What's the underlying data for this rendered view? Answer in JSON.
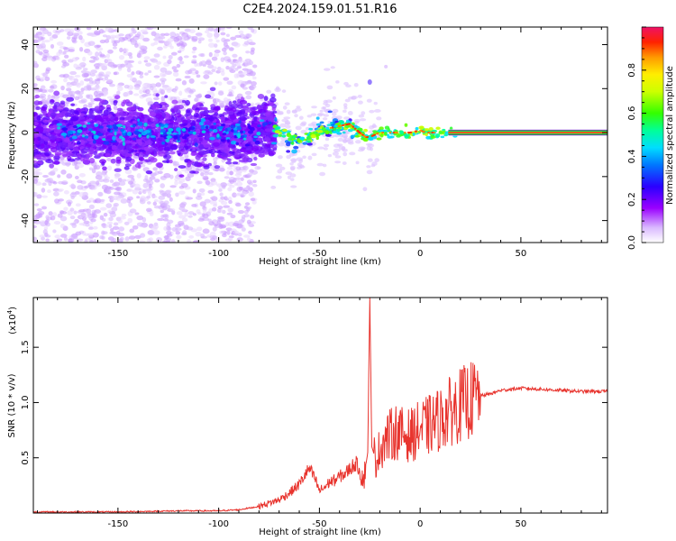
{
  "figure": {
    "title": "C2E4.2024.159.01.51.R16"
  },
  "chart_data": [
    {
      "type": "heatmap",
      "xlabel": "Height of straight line (km)",
      "ylabel": "Frequency (Hz)",
      "xlim": [
        -192,
        93
      ],
      "ylim": [
        -50,
        48
      ],
      "xticks": [
        -150,
        -100,
        -50,
        0,
        50
      ],
      "yticks": [
        -40,
        -20,
        0,
        20,
        40
      ],
      "xtick_labels": [
        "-150",
        "-100",
        "-50",
        "0",
        "50"
      ],
      "ytick_labels": [
        "-40",
        "-20",
        "0",
        "20",
        "40"
      ],
      "colorbar": {
        "label": "Normalized spectral amplitude",
        "range": [
          0,
          1
        ],
        "ticks": [
          0.0,
          0.2,
          0.4,
          0.6,
          0.8
        ],
        "tick_labels": [
          "0.0",
          "0.2",
          "0.4",
          "0.6",
          "0.8"
        ]
      },
      "ridge_center": [
        [
          -80,
          4
        ],
        [
          -70,
          1
        ],
        [
          -65,
          -3
        ],
        [
          -60,
          -4
        ],
        [
          -55,
          -2
        ],
        [
          -50,
          0
        ],
        [
          -45,
          2
        ],
        [
          -40,
          3
        ],
        [
          -35,
          4
        ],
        [
          -30,
          0
        ],
        [
          -27,
          -2
        ],
        [
          -25,
          -2
        ],
        [
          -20,
          0
        ],
        [
          -15,
          0
        ],
        [
          -5,
          0
        ],
        [
          0,
          1
        ],
        [
          3,
          0
        ],
        [
          8,
          0
        ],
        [
          15,
          0
        ],
        [
          93,
          0
        ]
      ],
      "grid": false
    },
    {
      "type": "line",
      "xlabel": "Height of straight line (km)",
      "ylabel": "SNR (10 * v/v)",
      "y_scale_label": "(x10",
      "y_scale_exp": "4",
      "y_scale_close": ")",
      "xlim": [
        -192,
        93
      ],
      "ylim": [
        0,
        1.95
      ],
      "xticks": [
        -150,
        -100,
        -50,
        0,
        50
      ],
      "yticks": [
        0.5,
        1.0,
        1.5
      ],
      "xtick_labels": [
        "-150",
        "-100",
        "-50",
        "0",
        "50"
      ],
      "ytick_labels": [
        "0.5",
        "1.0",
        "1.5"
      ],
      "series": [
        {
          "color": "#e8342e",
          "x": [
            -192,
            -150,
            -120,
            -100,
            -90,
            -80,
            -70,
            -65,
            -60,
            -57,
            -55,
            -52,
            -50,
            -47,
            -45,
            -42,
            -40,
            -37,
            -35,
            -32,
            -30,
            -28,
            -26,
            -25,
            -24,
            -22,
            -20,
            -18,
            -15,
            -12,
            -10,
            -5,
            0,
            5,
            10,
            15,
            20,
            25,
            30,
            35,
            40,
            45,
            50,
            60,
            70,
            80,
            93
          ],
          "values": [
            0.01,
            0.01,
            0.02,
            0.02,
            0.03,
            0.06,
            0.12,
            0.18,
            0.26,
            0.35,
            0.4,
            0.3,
            0.2,
            0.24,
            0.28,
            0.3,
            0.33,
            0.36,
            0.4,
            0.45,
            0.4,
            0.3,
            0.55,
            1.95,
            0.6,
            0.48,
            0.58,
            0.65,
            0.7,
            0.74,
            0.72,
            0.7,
            0.76,
            0.8,
            0.85,
            0.92,
            0.98,
            1.02,
            1.06,
            1.08,
            1.11,
            1.12,
            1.13,
            1.12,
            1.11,
            1.1,
            1.1
          ]
        }
      ],
      "grid": false
    }
  ]
}
